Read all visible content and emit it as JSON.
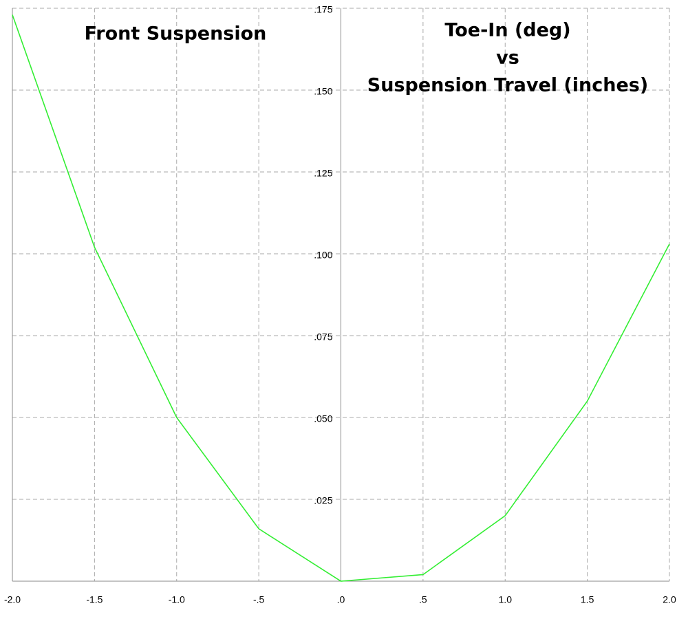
{
  "chart_data": {
    "type": "line",
    "annotations": [
      "Front Suspension",
      "Toe-In (deg)",
      "vs",
      "Suspension Travel (inches)"
    ],
    "x": [
      -2.0,
      -1.5,
      -1.0,
      -0.5,
      0,
      0.5,
      1.0,
      1.5,
      2.0
    ],
    "series": [
      {
        "color": "#33ee33",
        "values": [
          0.173,
          0.102,
          0.05,
          0.016,
          0,
          0.002,
          0.02,
          0.055,
          0.103
        ]
      }
    ],
    "xlim": [
      -2.0,
      2.0
    ],
    "xticks": [
      {
        "value": -2.0,
        "label": "-2.0"
      },
      {
        "value": -1.5,
        "label": "-1.5"
      },
      {
        "value": -1.0,
        "label": "-1.0"
      },
      {
        "value": -0.5,
        "label": "-.5"
      },
      {
        "value": 0,
        "label": ".0"
      },
      {
        "value": 0.5,
        "label": ".5"
      },
      {
        "value": 1.0,
        "label": "1.0"
      },
      {
        "value": 1.5,
        "label": "1.5"
      },
      {
        "value": 2.0,
        "label": "2.0"
      }
    ],
    "ylim": [
      0,
      0.175
    ],
    "yticks": [
      {
        "value": 0.025,
        "label": ".025"
      },
      {
        "value": 0.05,
        "label": ".050"
      },
      {
        "value": 0.075,
        "label": ".075"
      },
      {
        "value": 0.1,
        "label": ".100"
      },
      {
        "value": 0.125,
        "label": ".125"
      },
      {
        "value": 0.15,
        "label": ".150"
      },
      {
        "value": 0.175,
        "label": ".175"
      }
    ],
    "grid": true
  }
}
